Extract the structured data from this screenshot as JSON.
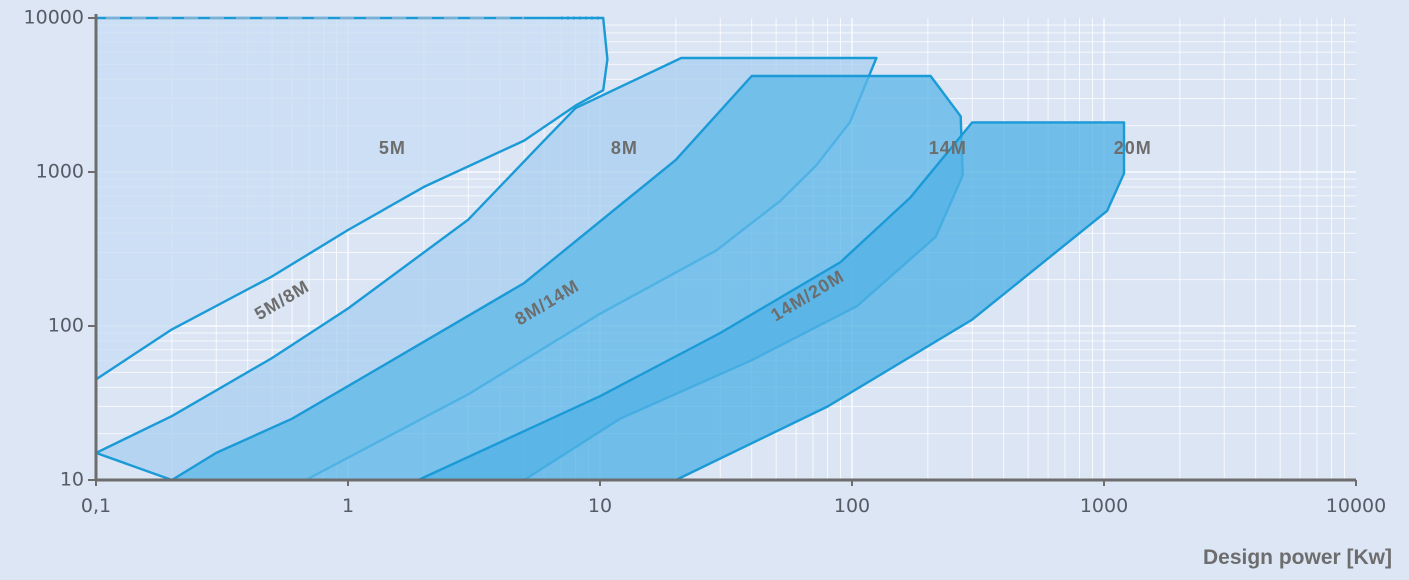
{
  "chart_data": {
    "type": "area",
    "xscale": "log",
    "yscale": "log",
    "xlim": [
      0.1,
      10000
    ],
    "ylim": [
      10,
      10000
    ],
    "xlabel": "Design power [Kw]",
    "ylabel": "",
    "grid": true,
    "x_ticks": [
      {
        "value": 0.1,
        "label": "0,1"
      },
      {
        "value": 1,
        "label": "1"
      },
      {
        "value": 10,
        "label": "10"
      },
      {
        "value": 100,
        "label": "100"
      },
      {
        "value": 1000,
        "label": "1000"
      },
      {
        "value": 10000,
        "label": "10000"
      }
    ],
    "y_ticks": [
      {
        "value": 10,
        "label": "10"
      },
      {
        "value": 100,
        "label": "100"
      },
      {
        "value": 1000,
        "label": "1000"
      },
      {
        "value": 10000,
        "label": "10000"
      }
    ],
    "regions": [
      {
        "name": "5M",
        "color": "#c9def4",
        "points": [
          [
            0.1,
            45
          ],
          [
            0.2,
            95
          ],
          [
            0.5,
            210
          ],
          [
            1,
            420
          ],
          [
            2,
            800
          ],
          [
            5,
            1600
          ],
          [
            8,
            2700
          ],
          [
            10.3,
            3400
          ],
          [
            10.7,
            5400
          ],
          [
            10.3,
            10000
          ],
          [
            0.1,
            10000
          ]
        ]
      },
      {
        "name": "8M",
        "color": "#a9d0f0",
        "points": [
          [
            0.1,
            15
          ],
          [
            0.2,
            26
          ],
          [
            0.5,
            62
          ],
          [
            1,
            130
          ],
          [
            3,
            490
          ],
          [
            6,
            1600
          ],
          [
            8,
            2600
          ],
          [
            21,
            5500
          ],
          [
            125,
            5500
          ],
          [
            98,
            2100
          ],
          [
            72,
            1100
          ],
          [
            52,
            650
          ],
          [
            29,
            310
          ],
          [
            10,
            120
          ],
          [
            3,
            36
          ],
          [
            0.68,
            10
          ],
          [
            0.2,
            10
          ]
        ]
      },
      {
        "name": "14M",
        "color": "#5fb8e8",
        "points": [
          [
            0.2,
            10
          ],
          [
            0.3,
            15
          ],
          [
            0.6,
            25
          ],
          [
            1.5,
            60
          ],
          [
            5,
            190
          ],
          [
            20,
            1200
          ],
          [
            40,
            4200
          ],
          [
            205,
            4200
          ],
          [
            270,
            2300
          ],
          [
            275,
            950
          ],
          [
            215,
            380
          ],
          [
            105,
            135
          ],
          [
            40,
            60
          ],
          [
            12,
            25
          ],
          [
            5,
            10
          ]
        ]
      },
      {
        "name": "20M",
        "color": "#52b2e6",
        "points": [
          [
            1.9,
            10
          ],
          [
            10,
            35
          ],
          [
            30,
            90
          ],
          [
            90,
            260
          ],
          [
            170,
            680
          ],
          [
            300,
            2100
          ],
          [
            1200,
            2100
          ],
          [
            1200,
            980
          ],
          [
            1030,
            560
          ],
          [
            300,
            110
          ],
          [
            80,
            30
          ],
          [
            20,
            10
          ]
        ]
      }
    ],
    "annotations": [
      {
        "text": "5M",
        "x": 1.5,
        "y": 1400,
        "angle": 0
      },
      {
        "text": "8M",
        "x": 12.5,
        "y": 1400,
        "angle": 0
      },
      {
        "text": "14M",
        "x": 240,
        "y": 1400,
        "angle": 0
      },
      {
        "text": "20M",
        "x": 1300,
        "y": 1400,
        "angle": 0
      },
      {
        "text": "5M/8M",
        "x": 0.55,
        "y": 145,
        "angle": -31
      },
      {
        "text": "8M/14M",
        "x": 6.2,
        "y": 140,
        "angle": -31
      },
      {
        "text": "14M/20M",
        "x": 67,
        "y": 155,
        "angle": -31
      }
    ]
  }
}
